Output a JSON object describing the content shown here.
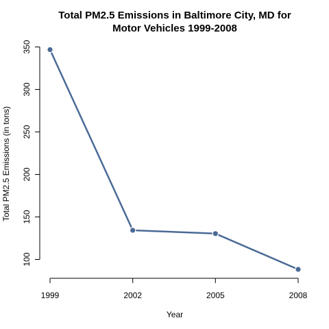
{
  "chart_data": {
    "type": "line",
    "title_lines": [
      "Total PM2.5 Emissions in Baltimore City, MD for",
      "Motor Vehicles 1999-2008"
    ],
    "xlabel": "Year",
    "ylabel": "Total PM2.5 Emissions (in tons)",
    "x": [
      1999,
      2002,
      2005,
      2008
    ],
    "x_tick_labels": [
      "1999",
      "2002",
      "2005",
      "2008"
    ],
    "y_ticks": [
      100,
      150,
      200,
      250,
      300,
      350
    ],
    "y_tick_labels": [
      "100",
      "150",
      "200",
      "250",
      "300",
      "350"
    ],
    "ylim": [
      85,
      351
    ],
    "series": [
      {
        "values": [
          346.8,
          134.3,
          130.4,
          88.3
        ],
        "color": "#4a6a96"
      }
    ],
    "grid": false,
    "legend": "none"
  }
}
